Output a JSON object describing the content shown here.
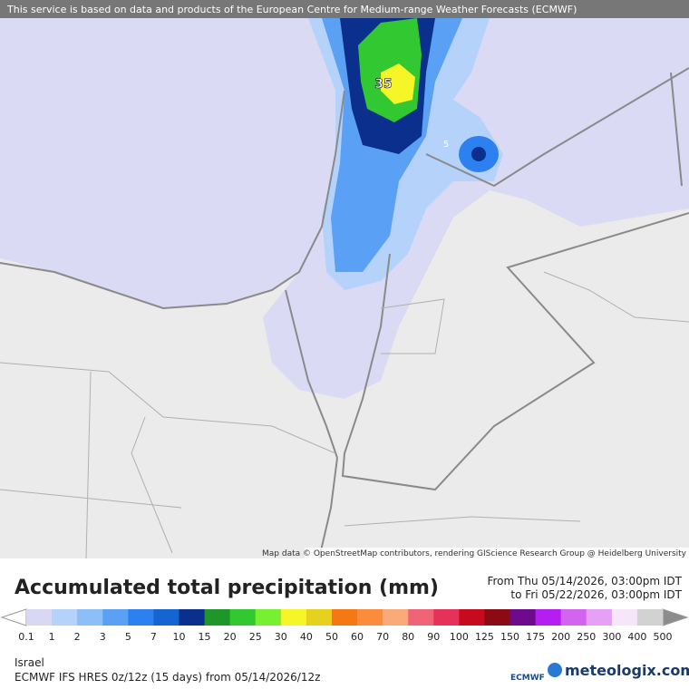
{
  "header": {
    "attribution": "This service is based on data and products of the European Centre for Medium-range Weather Forecasts (ECMWF)"
  },
  "map": {
    "labels": [
      "35",
      "5"
    ],
    "credit": "Map data © OpenStreetMap contributors, rendering GIScience Research Group @ Heidelberg University"
  },
  "legend": {
    "title": "Accumulated total precipitation (mm)",
    "from": "From Thu 05/14/2026, 03:00pm IDT",
    "to": "to Fri 05/22/2026, 03:00pm IDT",
    "ticks": [
      "0.1",
      "1",
      "2",
      "3",
      "5",
      "7",
      "10",
      "15",
      "20",
      "25",
      "30",
      "40",
      "50",
      "60",
      "70",
      "80",
      "90",
      "100",
      "125",
      "150",
      "175",
      "200",
      "250",
      "300",
      "400",
      "500"
    ],
    "colors": [
      "#d8d8f5",
      "#b4d2fa",
      "#8cbef8",
      "#5aa0f5",
      "#2d80f0",
      "#1464d2",
      "#0a2f8c",
      "#1e9628",
      "#32c832",
      "#78f032",
      "#f5f528",
      "#e6d21e",
      "#f57814",
      "#fa8c3c",
      "#faaa78",
      "#f06478",
      "#e6325a",
      "#c80a1e",
      "#8c0a14",
      "#6e0a8c",
      "#b41ef0",
      "#d264f0",
      "#e6a0f5",
      "#f5e6fa",
      "#d2d2d2"
    ],
    "under_color": "#ffffff",
    "over_color": "#8c8c8c"
  },
  "footer": {
    "region": "Israel",
    "model": "ECMWF IFS HRES 0z/12z (15 days) from  05/14/2026/12z",
    "ecmwf": "ECMWF",
    "brand": "meteologix.com"
  }
}
